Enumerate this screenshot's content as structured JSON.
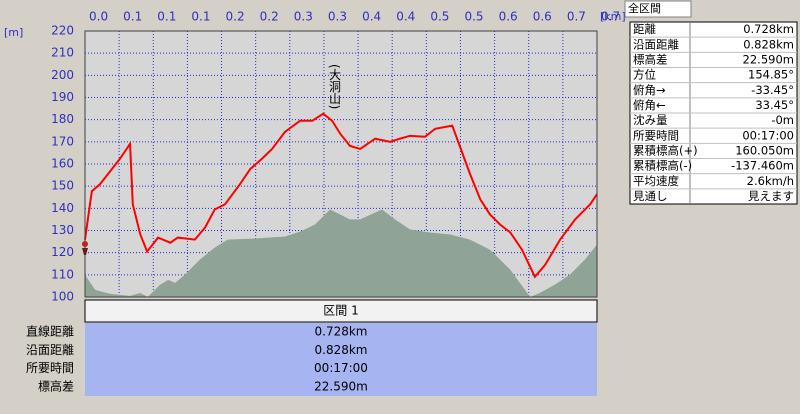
{
  "chart_data": {
    "type": "line",
    "y_unit": "[m]",
    "x_unit": "[km]",
    "annotation": "(大洞山)",
    "xlim": [
      0,
      0.75
    ],
    "xticks": [
      {
        "value": 0,
        "label": "0.0"
      },
      {
        "value": 0.05,
        "label": "0.1"
      },
      0.1,
      {
        "value": 0.15,
        "label": "0.1"
      },
      0.2,
      {
        "value": 0.25,
        "label": "0.2"
      },
      0.3,
      {
        "value": 0.35,
        "label": "0.3"
      },
      0.4,
      {
        "value": 0.45,
        "label": "0.4"
      },
      0.5,
      {
        "value": 0.55,
        "label": "0.5"
      },
      0.6,
      {
        "value": 0.65,
        "label": "0.6"
      },
      0.7,
      {
        "value": 0.75,
        "label": "0.7"
      }
    ],
    "ylim": [
      100,
      220
    ],
    "yticks": [
      100,
      110,
      120,
      130,
      140,
      150,
      160,
      170,
      180,
      190,
      200,
      210,
      220
    ],
    "grid": true,
    "series": [
      {
        "type": "line",
        "color": "#ff0000",
        "x": [
          0,
          0.01,
          0.022,
          0.037,
          0.051,
          0.066,
          0.07,
          0.081,
          0.091,
          0.107,
          0.125,
          0.136,
          0.161,
          0.176,
          0.19,
          0.205,
          0.227,
          0.242,
          0.259,
          0.274,
          0.293,
          0.315,
          0.333,
          0.349,
          0.362,
          0.374,
          0.388,
          0.403,
          0.425,
          0.447,
          0.461,
          0.476,
          0.498,
          0.513,
          0.538,
          0.564,
          0.579,
          0.593,
          0.608,
          0.623,
          0.64,
          0.659,
          0.674,
          0.696,
          0.718,
          0.74,
          0.75
        ],
        "values": [
          125.9,
          147.7,
          150.9,
          156.8,
          162.3,
          169.1,
          141.8,
          128.2,
          120.5,
          126.8,
          124.5,
          126.8,
          125.9,
          131.4,
          139.5,
          141.8,
          150.9,
          157.7,
          162.3,
          166.8,
          174.5,
          179.5,
          179.5,
          182.7,
          179.5,
          173.6,
          168.2,
          166.8,
          171.4,
          170.0,
          171.4,
          172.7,
          172.3,
          175.9,
          177.3,
          155.5,
          144.1,
          137.3,
          132.7,
          129.1,
          121.4,
          109.1,
          114.5,
          125.9,
          135.0,
          141.8,
          146.4
        ]
      },
      {
        "type": "area",
        "color": "#8fa396",
        "x": [
          0,
          0.015,
          0.037,
          0.066,
          0.081,
          0.092,
          0.11,
          0.122,
          0.132,
          0.146,
          0.168,
          0.19,
          0.209,
          0.249,
          0.293,
          0.315,
          0.337,
          0.359,
          0.388,
          0.403,
          0.435,
          0.454,
          0.476,
          0.505,
          0.535,
          0.564,
          0.593,
          0.623,
          0.652,
          0.666,
          0.688,
          0.71,
          0.732,
          0.75
        ],
        "values": [
          110.0,
          103.2,
          101.4,
          100.5,
          101.8,
          100.0,
          105.5,
          107.7,
          106.4,
          110.0,
          116.8,
          122.3,
          125.9,
          126.4,
          127.3,
          129.5,
          132.7,
          139.5,
          135.0,
          135.0,
          139.5,
          135.0,
          130.5,
          129.1,
          128.2,
          125.9,
          121.4,
          112.3,
          100.0,
          101.8,
          105.5,
          110.0,
          116.8,
          123.6
        ]
      }
    ]
  },
  "summary_panel": {
    "title": "全区間",
    "rows": [
      [
        "距離",
        "0.728km"
      ],
      [
        "沿面距離",
        "0.828km"
      ],
      [
        "標高差",
        "22.590m"
      ],
      [
        "方位",
        "154.85°"
      ],
      [
        "俯角→",
        "-33.45°"
      ],
      [
        "俯角←",
        "33.45°"
      ],
      [
        "沈み量",
        "-0m"
      ],
      [
        "所要時間",
        "00:17:00"
      ],
      [
        "累積標高(+)",
        "160.050m"
      ],
      [
        "累積標高(-)",
        "-137.460m"
      ],
      [
        "平均速度",
        "2.6km/h"
      ],
      [
        "見通し",
        "見えます"
      ]
    ]
  },
  "section_table": {
    "title": "区間 1",
    "rows": [
      [
        "直線距離",
        "0.728km"
      ],
      [
        "沿面距離",
        "0.828km"
      ],
      [
        "所要時間",
        "00:17:00"
      ],
      [
        "標高差",
        "22.590m"
      ]
    ]
  }
}
